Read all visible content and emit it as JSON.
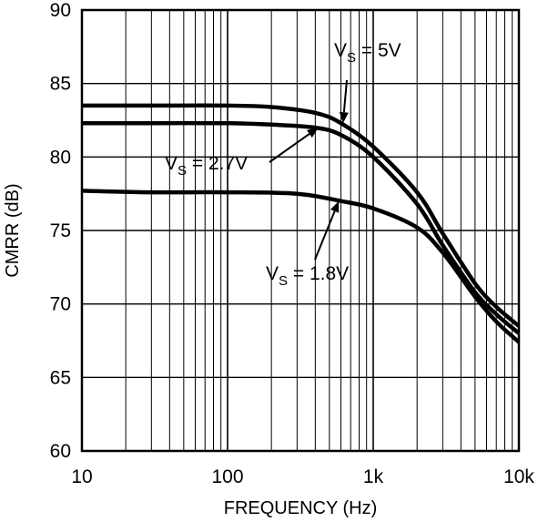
{
  "chart_data": {
    "type": "line",
    "title": "",
    "xlabel": "FREQUENCY (Hz)",
    "ylabel": "CMRR (dB)",
    "xscale": "log",
    "xlim": [
      10,
      10000
    ],
    "ylim": [
      60,
      90
    ],
    "grid": true,
    "colors": {
      "line": "#000000",
      "grid": "#000000",
      "background": "#ffffff"
    },
    "xticks": [
      {
        "value": 10,
        "label": "10"
      },
      {
        "value": 100,
        "label": "100"
      },
      {
        "value": 1000,
        "label": "1k"
      },
      {
        "value": 10000,
        "label": "10k"
      }
    ],
    "yticks": [
      {
        "value": 60,
        "label": "60"
      },
      {
        "value": 65,
        "label": "65"
      },
      {
        "value": 70,
        "label": "70"
      },
      {
        "value": 75,
        "label": "75"
      },
      {
        "value": 80,
        "label": "80"
      },
      {
        "value": 85,
        "label": "85"
      },
      {
        "value": 90,
        "label": "90"
      }
    ],
    "series": [
      {
        "name": "VS = 5V",
        "x": [
          10,
          30,
          100,
          200,
          400,
          600,
          1000,
          2000,
          3000,
          5000,
          7000,
          10000
        ],
        "y": [
          83.5,
          83.5,
          83.5,
          83.4,
          83.0,
          82.3,
          80.7,
          77.6,
          74.8,
          71.4,
          69.8,
          68.5
        ]
      },
      {
        "name": "VS = 2.7V",
        "x": [
          10,
          30,
          100,
          200,
          400,
          600,
          1000,
          2000,
          3000,
          5000,
          7000,
          10000
        ],
        "y": [
          82.3,
          82.3,
          82.3,
          82.2,
          82.0,
          81.5,
          80.0,
          76.8,
          74.0,
          70.8,
          69.3,
          68.0
        ]
      },
      {
        "name": "VS = 1.8V",
        "x": [
          10,
          30,
          100,
          300,
          600,
          1000,
          2000,
          3000,
          5000,
          7000,
          10000
        ],
        "y": [
          77.7,
          77.6,
          77.6,
          77.5,
          77.0,
          76.5,
          75.2,
          73.5,
          70.5,
          68.8,
          67.4
        ]
      }
    ],
    "annotations": [
      {
        "main": "V",
        "sub": "S",
        "rest": " = 5V",
        "target_x": 620,
        "target_y": 82.3
      },
      {
        "main": "V",
        "sub": "S",
        "rest": " = 2.7V",
        "target_x": 420,
        "target_y": 82.0
      },
      {
        "main": "V",
        "sub": "S",
        "rest": " = 1.8V",
        "target_x": 580,
        "target_y": 77.0
      }
    ]
  }
}
